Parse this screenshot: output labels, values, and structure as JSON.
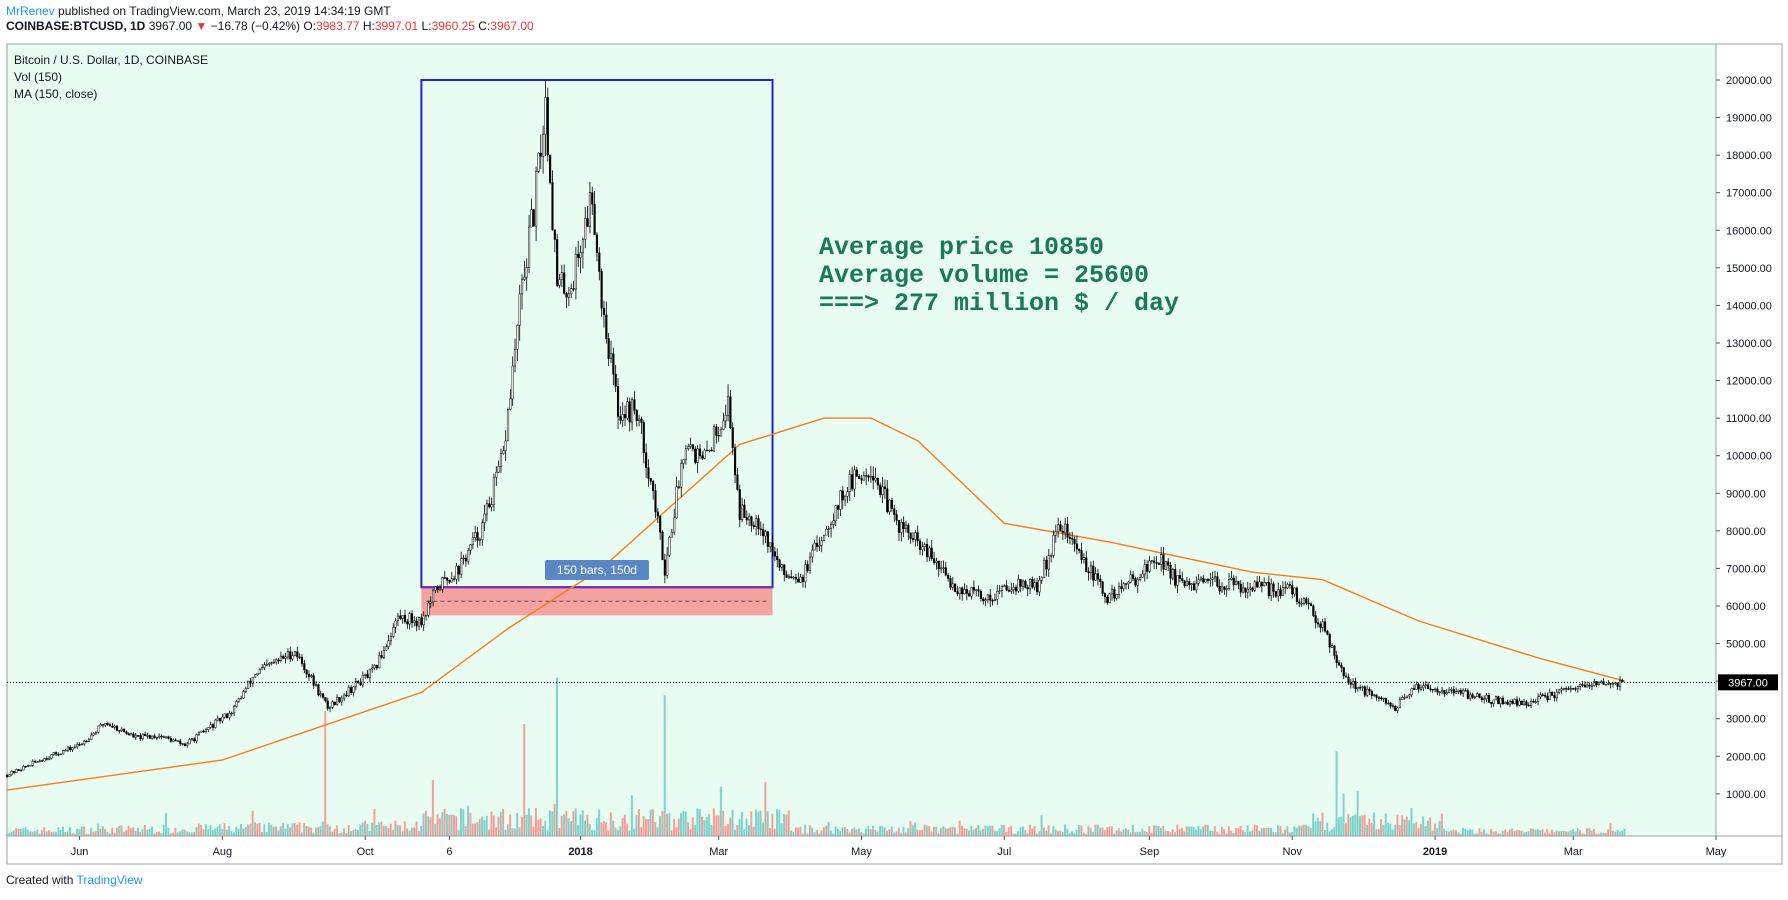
{
  "header": {
    "author": "MrRenev",
    "published": "published on TradingView.com, March 23, 2019 14:34:19 GMT",
    "symbol": "COINBASE:BTCUSD, 1D",
    "last": "3967.00",
    "change_arrow": "▼",
    "change": "−16.78 (−0.42%)",
    "open_label": "O:",
    "open": "3983.77",
    "high_label": "H:",
    "high": "3997.01",
    "low_label": "L:",
    "low": "3960.25",
    "close_label": "C:",
    "close": "3967.00"
  },
  "legend": {
    "title": "Bitcoin / U.S. Dollar, 1D, COINBASE",
    "vol": "Vol (150)",
    "ma": "MA (150, close)"
  },
  "footer": {
    "created": "Created with",
    "brand": "TradingView"
  },
  "colors": {
    "background": "#e8fcf2",
    "candle": "#000000",
    "ma_line": "#f57c1f",
    "vol_up": "#7fd3cb",
    "vol_down": "#f4a09a",
    "box_border": "#2323d3",
    "range_fill": "#f4a3a0",
    "annotation_text": "#1b7a56",
    "range_label_bg": "#5b86c4"
  },
  "chart_data": {
    "type": "line",
    "title": "Bitcoin / U.S. Dollar, 1D, COINBASE",
    "xlabel": "",
    "ylabel": "",
    "ylim": [
      0,
      21000
    ],
    "grid": false,
    "x_ticks": [
      "Jun",
      "Aug",
      "Oct",
      "6",
      "2018",
      "Mar",
      "May",
      "Jul",
      "Sep",
      "Nov",
      "2019",
      "Mar",
      "May"
    ],
    "y_ticks": [
      "20000.00",
      "19000.00",
      "18000.00",
      "17000.00",
      "16000.00",
      "15000.00",
      "14000.00",
      "13000.00",
      "12000.00",
      "11000.00",
      "10000.00",
      "9000.00",
      "8000.00",
      "7000.00",
      "6000.00",
      "5000.00",
      "4000.00",
      "3000.00",
      "2000.00",
      "1000.00"
    ],
    "last_price_label": "3967.00",
    "series": [
      {
        "kind": "price",
        "x": [
          "2017-05-01",
          "2017-05-15",
          "2017-06-01",
          "2017-06-12",
          "2017-06-25",
          "2017-07-05",
          "2017-07-16",
          "2017-07-25",
          "2017-08-05",
          "2017-08-15",
          "2017-09-01",
          "2017-09-15",
          "2017-09-25",
          "2017-10-05",
          "2017-10-15",
          "2017-10-25",
          "2017-11-01",
          "2017-11-10",
          "2017-11-20",
          "2017-11-29",
          "2017-12-07",
          "2017-12-12",
          "2017-12-17",
          "2017-12-22",
          "2017-12-28",
          "2018-01-06",
          "2018-01-10",
          "2018-01-17",
          "2018-01-25",
          "2018-02-01",
          "2018-02-06",
          "2018-02-15",
          "2018-02-22",
          "2018-03-05",
          "2018-03-10",
          "2018-03-18",
          "2018-03-28",
          "2018-04-06",
          "2018-04-15",
          "2018-04-25",
          "2018-05-05",
          "2018-05-15",
          "2018-05-29",
          "2018-06-10",
          "2018-06-24",
          "2018-07-05",
          "2018-07-15",
          "2018-07-25",
          "2018-08-05",
          "2018-08-14",
          "2018-08-25",
          "2018-09-05",
          "2018-09-15",
          "2018-09-30",
          "2018-10-15",
          "2018-11-01",
          "2018-11-14",
          "2018-11-20",
          "2018-11-25",
          "2018-12-05",
          "2018-12-15",
          "2018-12-25",
          "2019-01-10",
          "2019-01-25",
          "2019-02-08",
          "2019-02-24",
          "2019-03-10",
          "2019-03-23"
        ],
        "y": [
          1500,
          1900,
          2300,
          2900,
          2500,
          2550,
          2300,
          2700,
          3200,
          4200,
          4800,
          3300,
          3800,
          4300,
          5700,
          5600,
          6500,
          7000,
          8100,
          10000,
          14500,
          16500,
          19400,
          14500,
          14500,
          17000,
          14200,
          11200,
          11200,
          9000,
          7000,
          10500,
          9800,
          11400,
          8500,
          8300,
          6900,
          6800,
          8000,
          9200,
          9700,
          8300,
          7400,
          6500,
          6200,
          6600,
          6500,
          8200,
          7100,
          6200,
          6700,
          7300,
          6500,
          6600,
          6500,
          6400,
          5500,
          4600,
          4000,
          3600,
          3300,
          3900,
          3700,
          3500,
          3400,
          3700,
          3900,
          3967
        ]
      },
      {
        "kind": "ma",
        "x": [
          "2017-05-01",
          "2017-08-01",
          "2017-10-25",
          "2017-12-01",
          "2018-01-10",
          "2018-03-10",
          "2018-04-15",
          "2018-05-05",
          "2018-05-25",
          "2018-07-01",
          "2018-08-15",
          "2018-10-15",
          "2018-11-14",
          "2018-12-25",
          "2019-02-15",
          "2019-03-23"
        ],
        "y": [
          1100,
          1900,
          3700,
          5400,
          7000,
          10300,
          11000,
          11000,
          10400,
          8200,
          7700,
          6900,
          6700,
          5600,
          4600,
          4000
        ]
      }
    ],
    "annotations": [
      {
        "type": "text",
        "lines": [
          "Average price 10850",
          "Average volume = 25600",
          "===> 277 million $ / day"
        ]
      },
      {
        "type": "rect",
        "x0": "2017-10-25",
        "x1": "2018-03-24",
        "y0": 6500,
        "y1": 20000
      },
      {
        "type": "range",
        "x0": "2017-10-25",
        "x1": "2018-03-24",
        "y0": 5750,
        "y1": 6500,
        "label": "150 bars, 150d"
      }
    ]
  }
}
